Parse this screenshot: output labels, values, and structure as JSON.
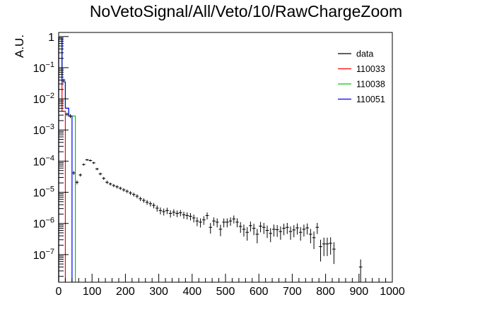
{
  "chart_data": {
    "type": "line",
    "title": "NoVetoSignal/All/Veto/10/RawChargeZoom",
    "xlabel": "",
    "ylabel": "A.U.",
    "xlim": [
      0,
      1000
    ],
    "ylim": [
      1.3e-08,
      1.35
    ],
    "yscale": "log",
    "x_ticks": [
      0,
      100,
      200,
      300,
      400,
      500,
      600,
      700,
      800,
      900,
      1000
    ],
    "y_ticks": [
      {
        "value": 1e-07,
        "base": "10",
        "exp": "−7"
      },
      {
        "value": 1e-06,
        "base": "10",
        "exp": "−6"
      },
      {
        "value": 1e-05,
        "base": "10",
        "exp": "−5"
      },
      {
        "value": 0.0001,
        "base": "10",
        "exp": "−4"
      },
      {
        "value": 0.001,
        "base": "10",
        "exp": "−3"
      },
      {
        "value": 0.01,
        "base": "10",
        "exp": "−2"
      },
      {
        "value": 0.1,
        "base": "10",
        "exp": "−1"
      },
      {
        "value": 1,
        "base": "1",
        "exp": ""
      }
    ],
    "grid": false,
    "legend_position": "top-right",
    "series": [
      {
        "name": "data",
        "style": "errorbar",
        "color": "#000000",
        "bin_width": 10,
        "x": [
          5,
          15,
          25,
          35,
          45,
          55,
          65,
          75,
          85,
          95,
          105,
          115,
          125,
          135,
          145,
          155,
          165,
          175,
          185,
          195,
          205,
          215,
          225,
          235,
          245,
          255,
          265,
          275,
          285,
          295,
          305,
          315,
          325,
          335,
          345,
          355,
          365,
          375,
          385,
          395,
          405,
          415,
          425,
          435,
          445,
          455,
          465,
          475,
          485,
          495,
          505,
          515,
          525,
          535,
          545,
          555,
          565,
          575,
          585,
          595,
          605,
          615,
          625,
          635,
          645,
          655,
          665,
          675,
          685,
          695,
          705,
          715,
          725,
          735,
          745,
          755,
          765,
          775,
          785,
          795,
          805,
          815,
          825,
          905
        ],
        "y": [
          0.9,
          0.04,
          0.0032,
          0.0028,
          4.2e-05,
          2.1e-05,
          3.6e-05,
          7.8e-05,
          0.00011,
          0.000105,
          8.8e-05,
          5.6e-05,
          3.9e-05,
          2.8e-05,
          2.1e-05,
          1.85e-05,
          1.65e-05,
          1.5e-05,
          1.35e-05,
          1.2e-05,
          1.08e-05,
          9.5e-06,
          8.5e-06,
          7.5e-06,
          6.2e-06,
          5.5e-06,
          4.8e-06,
          4.3e-06,
          3.8e-06,
          3.1e-06,
          2.6e-06,
          2.4e-06,
          2.6e-06,
          2.1e-06,
          2.3e-06,
          2.1e-06,
          2.2e-06,
          1.9e-06,
          1.8e-06,
          1.7e-06,
          1.5e-06,
          1.2e-06,
          1.1e-06,
          1.3e-06,
          1.8e-06,
          7.5e-07,
          1.2e-06,
          1.1e-06,
          6.5e-07,
          1.1e-06,
          1.1e-06,
          1.2e-06,
          1.4e-06,
          1.1e-06,
          8e-07,
          6.5e-07,
          5.2e-07,
          8.5e-07,
          7e-07,
          4.5e-07,
          8.2e-07,
          7.5e-07,
          6e-07,
          4.8e-07,
          6.5e-07,
          6.3e-07,
          5.5e-07,
          7e-07,
          7.5e-07,
          5.5e-07,
          6.2e-07,
          7.2e-07,
          5.2e-07,
          6.5e-07,
          7.2e-07,
          4.5e-07,
          3.5e-07,
          7.5e-07,
          1.8e-07,
          2.2e-07,
          2.2e-07,
          2.3e-07,
          1.5e-07,
          4e-08
        ],
        "yerr": [
          0.02,
          0.004,
          0.0004,
          0.0004,
          6e-06,
          3e-06,
          4e-06,
          6e-06,
          8e-06,
          8e-06,
          7e-06,
          5e-06,
          4e-06,
          3e-06,
          2.5e-06,
          2e-06,
          1.9e-06,
          1.8e-06,
          1.6e-06,
          1.5e-06,
          1.4e-06,
          1.3e-06,
          1.2e-06,
          1.1e-06,
          1e-06,
          9e-07,
          8.5e-07,
          8e-07,
          7.5e-07,
          7e-07,
          6.5e-07,
          6e-07,
          6e-07,
          5.5e-07,
          5.5e-07,
          5e-07,
          5e-07,
          4.8e-07,
          4.6e-07,
          4.5e-07,
          4.2e-07,
          3.8e-07,
          3.6e-07,
          4e-07,
          4.5e-07,
          2.8e-07,
          3.6e-07,
          3.5e-07,
          2.6e-07,
          3.5e-07,
          3.5e-07,
          3.6e-07,
          4e-07,
          3.5e-07,
          3e-07,
          2.7e-07,
          2.4e-07,
          3e-07,
          2.8e-07,
          2.2e-07,
          3e-07,
          2.9e-07,
          2.6e-07,
          2.3e-07,
          2.7e-07,
          2.6e-07,
          2.5e-07,
          2.8e-07,
          2.9e-07,
          2.5e-07,
          2.6e-07,
          2.8e-07,
          2.4e-07,
          2.7e-07,
          2.8e-07,
          2.2e-07,
          2e-07,
          2.9e-07,
          1.2e-07,
          1.3e-07,
          1.3e-07,
          1.3e-07,
          1e-07,
          3e-08
        ]
      },
      {
        "name": "110033",
        "style": "step",
        "color": "#ff0000",
        "bin_edges": [
          0,
          10,
          20
        ],
        "values": [
          0.9,
          0.004
        ]
      },
      {
        "name": "110038",
        "style": "step",
        "color": "#00cc00",
        "bin_edges": [
          0,
          10,
          20,
          30,
          40,
          50
        ],
        "values": [
          0.9,
          0.035,
          0.005,
          0.0028,
          0.0028
        ]
      },
      {
        "name": "110051",
        "style": "step",
        "color": "#0000ff",
        "bin_edges": [
          0,
          10,
          20,
          30,
          40
        ],
        "values": [
          0.9,
          0.035,
          0.005,
          0.0028
        ]
      }
    ]
  }
}
